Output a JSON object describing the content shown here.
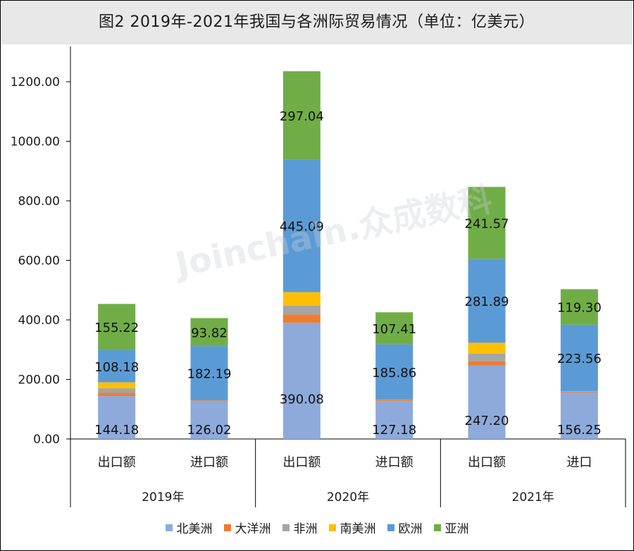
{
  "title": "图2  2019年-2021年我国与各洲际贸易情况（单位：亿美元）",
  "watermark": "Joinchain.众成数科",
  "chart_data": {
    "type": "bar",
    "stacked": true,
    "ylim": [
      0,
      1200
    ],
    "yticks": [
      "0.00",
      "200.00",
      "400.00",
      "600.00",
      "800.00",
      "1000.00",
      "1200.00"
    ],
    "grid": false,
    "legend_position": "bottom",
    "categories": [
      "出口额",
      "进口额",
      "出口额",
      "进口额",
      "出口额",
      "进口"
    ],
    "groups": [
      {
        "label": "2019年",
        "span": 2
      },
      {
        "label": "2020年",
        "span": 2
      },
      {
        "label": "2021年",
        "span": 2
      }
    ],
    "series": [
      {
        "name": "北美洲",
        "color": "#8eaadb",
        "values": [
          144.18,
          126.02,
          390.08,
          127.18,
          247.2,
          156.25
        ],
        "labels": [
          "144.18",
          "126.02",
          "390.08",
          "127.18",
          "247.20",
          "156.25"
        ]
      },
      {
        "name": "大洋洲",
        "color": "#ed7d31",
        "values": [
          11,
          3,
          28,
          3,
          14,
          3
        ]
      },
      {
        "name": "非洲",
        "color": "#a5a5a5",
        "values": [
          15,
          1,
          30,
          2,
          26,
          1
        ]
      },
      {
        "name": "南美洲",
        "color": "#ffc000",
        "values": [
          20,
          0,
          45,
          0,
          36,
          0
        ]
      },
      {
        "name": "欧洲",
        "color": "#5b9bd5",
        "values": [
          108.18,
          182.19,
          445.09,
          185.86,
          281.89,
          223.56
        ],
        "labels": [
          "108.18",
          "182.19",
          "445.09",
          "185.86",
          "281.89",
          "223.56"
        ]
      },
      {
        "name": "亚洲",
        "color": "#70ad47",
        "values": [
          155.22,
          93.82,
          297.04,
          107.41,
          241.57,
          119.3
        ],
        "labels": [
          "155.22",
          "93.82",
          "297.04",
          "107.41",
          "241.57",
          "119.30"
        ]
      }
    ]
  }
}
